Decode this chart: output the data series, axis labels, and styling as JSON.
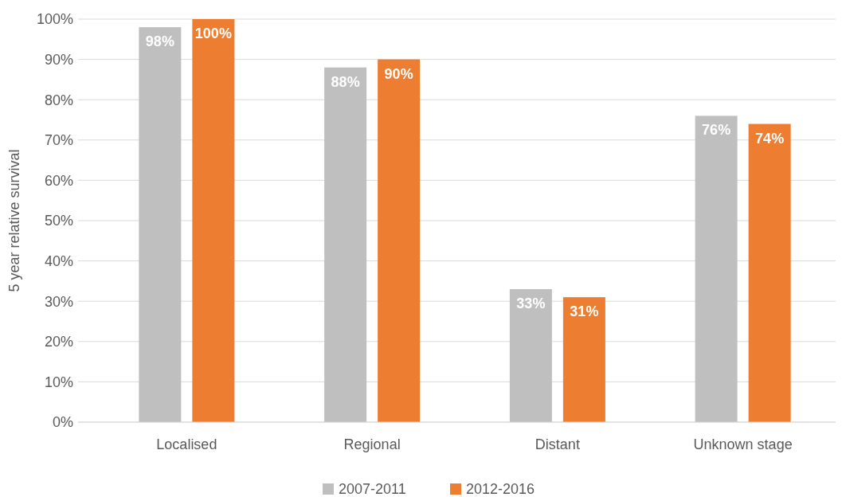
{
  "chart_data": {
    "type": "bar",
    "ylabel": "5 year relative survival",
    "categories": [
      "Localised",
      "Regional",
      "Distant",
      "Unknown stage"
    ],
    "series": [
      {
        "name": "2007-2011",
        "color": "#bfbfbf",
        "values": [
          98,
          88,
          33,
          76
        ],
        "value_labels": [
          "98%",
          "88%",
          "33%",
          "76%"
        ]
      },
      {
        "name": "2012-2016",
        "color": "#ed7d31",
        "values": [
          100,
          90,
          31,
          74
        ],
        "value_labels": [
          "100%",
          "90%",
          "31%",
          "74%"
        ]
      }
    ],
    "ylim": [
      0,
      100
    ],
    "yticks": [
      {
        "value": 0,
        "label": "0%"
      },
      {
        "value": 10,
        "label": "10%"
      },
      {
        "value": 20,
        "label": "20%"
      },
      {
        "value": 30,
        "label": "30%"
      },
      {
        "value": 40,
        "label": "40%"
      },
      {
        "value": 50,
        "label": "50%"
      },
      {
        "value": 60,
        "label": "60%"
      },
      {
        "value": 70,
        "label": "70%"
      },
      {
        "value": 80,
        "label": "80%"
      },
      {
        "value": 90,
        "label": "90%"
      },
      {
        "value": 100,
        "label": "100%"
      }
    ],
    "grid": "y",
    "legend": "bottom"
  }
}
